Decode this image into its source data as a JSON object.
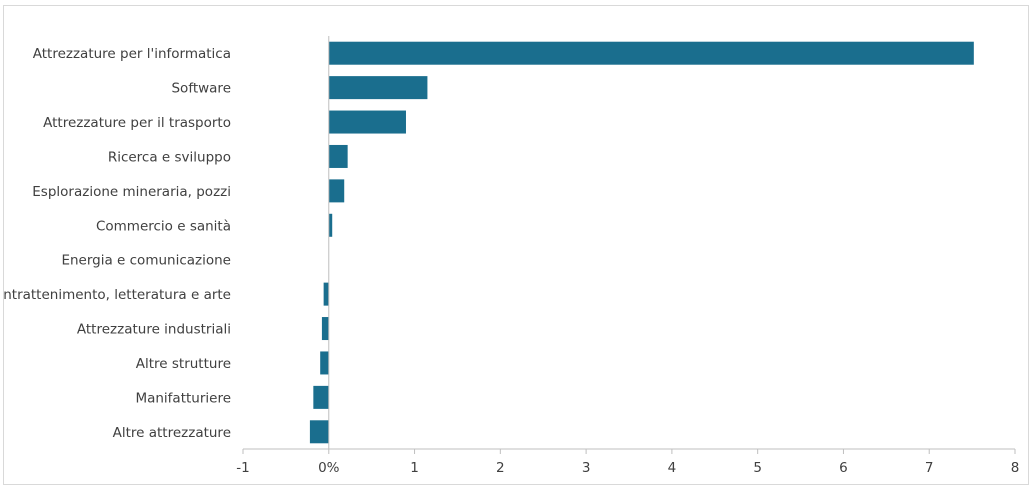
{
  "chart_data": {
    "type": "bar",
    "orientation": "horizontal",
    "categories": [
      "Attrezzature per l'informatica",
      "Software",
      "Attrezzature per il trasporto",
      "Ricerca e sviluppo",
      "Esplorazione mineraria, pozzi",
      "Commercio e sanità",
      "Energia e comunicazione",
      "Intrattenimento, letteratura e arte",
      "Attrezzature industriali",
      "Altre strutture",
      "Manifatturiere",
      "Altre attrezzature"
    ],
    "values": [
      7.52,
      1.15,
      0.9,
      0.22,
      0.18,
      0.04,
      0.0,
      -0.06,
      -0.08,
      -0.1,
      -0.18,
      -0.22
    ],
    "title": "",
    "xlabel": "",
    "ylabel": "",
    "xlim": [
      -1,
      8
    ],
    "x_ticks": [
      -1,
      0,
      1,
      2,
      3,
      4,
      5,
      6,
      7,
      8
    ],
    "x_tick_labels": [
      "-1",
      "0%",
      "1",
      "2",
      "3",
      "4",
      "5",
      "6",
      "7",
      "8"
    ],
    "grid": false,
    "legend": "none",
    "bar_color": "#1a6e8e",
    "axis_color": "#bfbfbf",
    "label_color": "#404040"
  }
}
